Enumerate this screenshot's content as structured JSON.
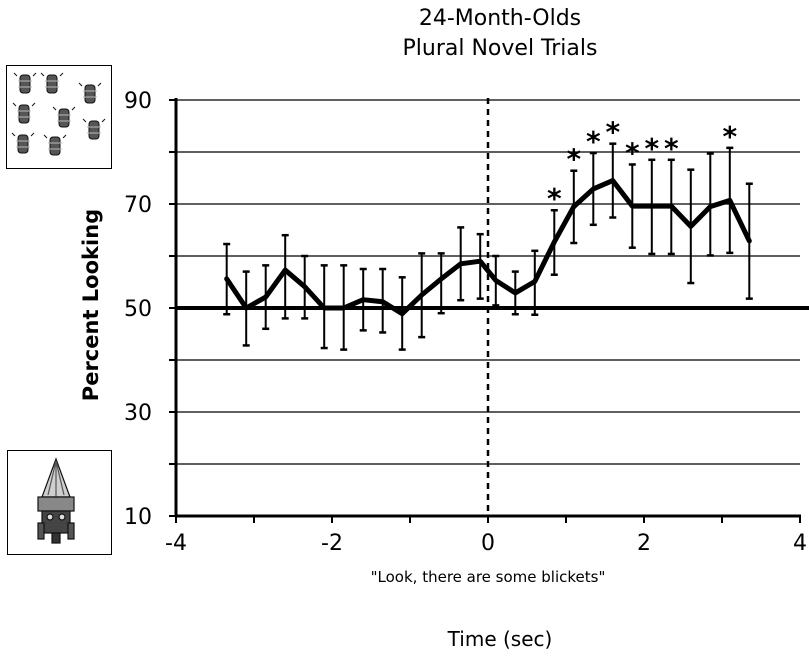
{
  "chart_data": {
    "type": "line",
    "title": "24-Month-Olds",
    "subtitle": "Plural Novel Trials",
    "ylabel": "Percent Looking",
    "xlabel": "Time (sec)",
    "annotation": "\"Look, there are some blickets\"",
    "xlim": [
      -4,
      4
    ],
    "ylim": [
      10,
      90
    ],
    "x_ticks": [
      -4,
      -2,
      0,
      2,
      4
    ],
    "x_tick_labels": [
      "-4",
      "-2",
      "0",
      "2",
      "4"
    ],
    "y_ticks": [
      10,
      30,
      50,
      70,
      90
    ],
    "y_tick_labels": [
      "10",
      "30",
      "50",
      "70",
      "90"
    ],
    "gridlines_y": [
      20,
      30,
      40,
      50,
      60,
      70,
      80,
      90
    ],
    "grid": true,
    "reference_line": {
      "y": 50,
      "style": "thick"
    },
    "event_line": {
      "x": 0,
      "style": "dashed"
    },
    "series": [
      {
        "x": [
          -3.35,
          -3.1,
          -2.85,
          -2.6,
          -2.35,
          -2.1,
          -1.85,
          -1.6,
          -1.35,
          -1.1,
          -0.85,
          -0.6,
          -0.35,
          -0.1,
          0.1,
          0.35,
          0.6,
          0.85,
          1.1,
          1.35,
          1.6,
          1.85,
          2.1,
          2.35,
          2.6,
          2.85,
          3.1,
          3.35
        ],
        "y": [
          55.6,
          50.0,
          52.1,
          57.3,
          54.1,
          50.0,
          50.0,
          51.6,
          51.2,
          48.9,
          52.5,
          55.6,
          58.5,
          59.0,
          55.3,
          52.9,
          55.1,
          62.7,
          69.5,
          72.9,
          74.5,
          69.6,
          69.6,
          69.6,
          65.7,
          69.5,
          70.7,
          62.9
        ],
        "err_upper": [
          62.3,
          57.0,
          58.2,
          64.0,
          60.0,
          58.2,
          58.2,
          57.5,
          57.5,
          55.9,
          60.5,
          60.5,
          65.5,
          64.2,
          60.0,
          57.0,
          61.0,
          68.8,
          76.4,
          79.8,
          81.6,
          77.6,
          78.5,
          78.5,
          76.6,
          79.7,
          80.8,
          73.9
        ],
        "err_lower": [
          48.8,
          42.8,
          46.0,
          48.0,
          48.0,
          42.3,
          42.0,
          45.7,
          45.3,
          42.0,
          44.4,
          49.0,
          51.5,
          51.8,
          50.5,
          48.8,
          48.7,
          56.4,
          62.5,
          66.0,
          67.4,
          61.6,
          60.4,
          60.4,
          54.8,
          60.1,
          60.6,
          51.8
        ]
      }
    ],
    "significance_marks": [
      {
        "x": 0.85,
        "label": "*"
      },
      {
        "x": 1.1,
        "label": "*"
      },
      {
        "x": 1.35,
        "label": "*"
      },
      {
        "x": 1.6,
        "label": "*"
      },
      {
        "x": 1.85,
        "label": "*"
      },
      {
        "x": 2.1,
        "label": "*"
      },
      {
        "x": 2.35,
        "label": "*"
      },
      {
        "x": 3.1,
        "label": "*"
      }
    ]
  },
  "icons": {
    "top": "group-of-novel-objects-icon",
    "bottom": "single-novel-object-icon"
  }
}
